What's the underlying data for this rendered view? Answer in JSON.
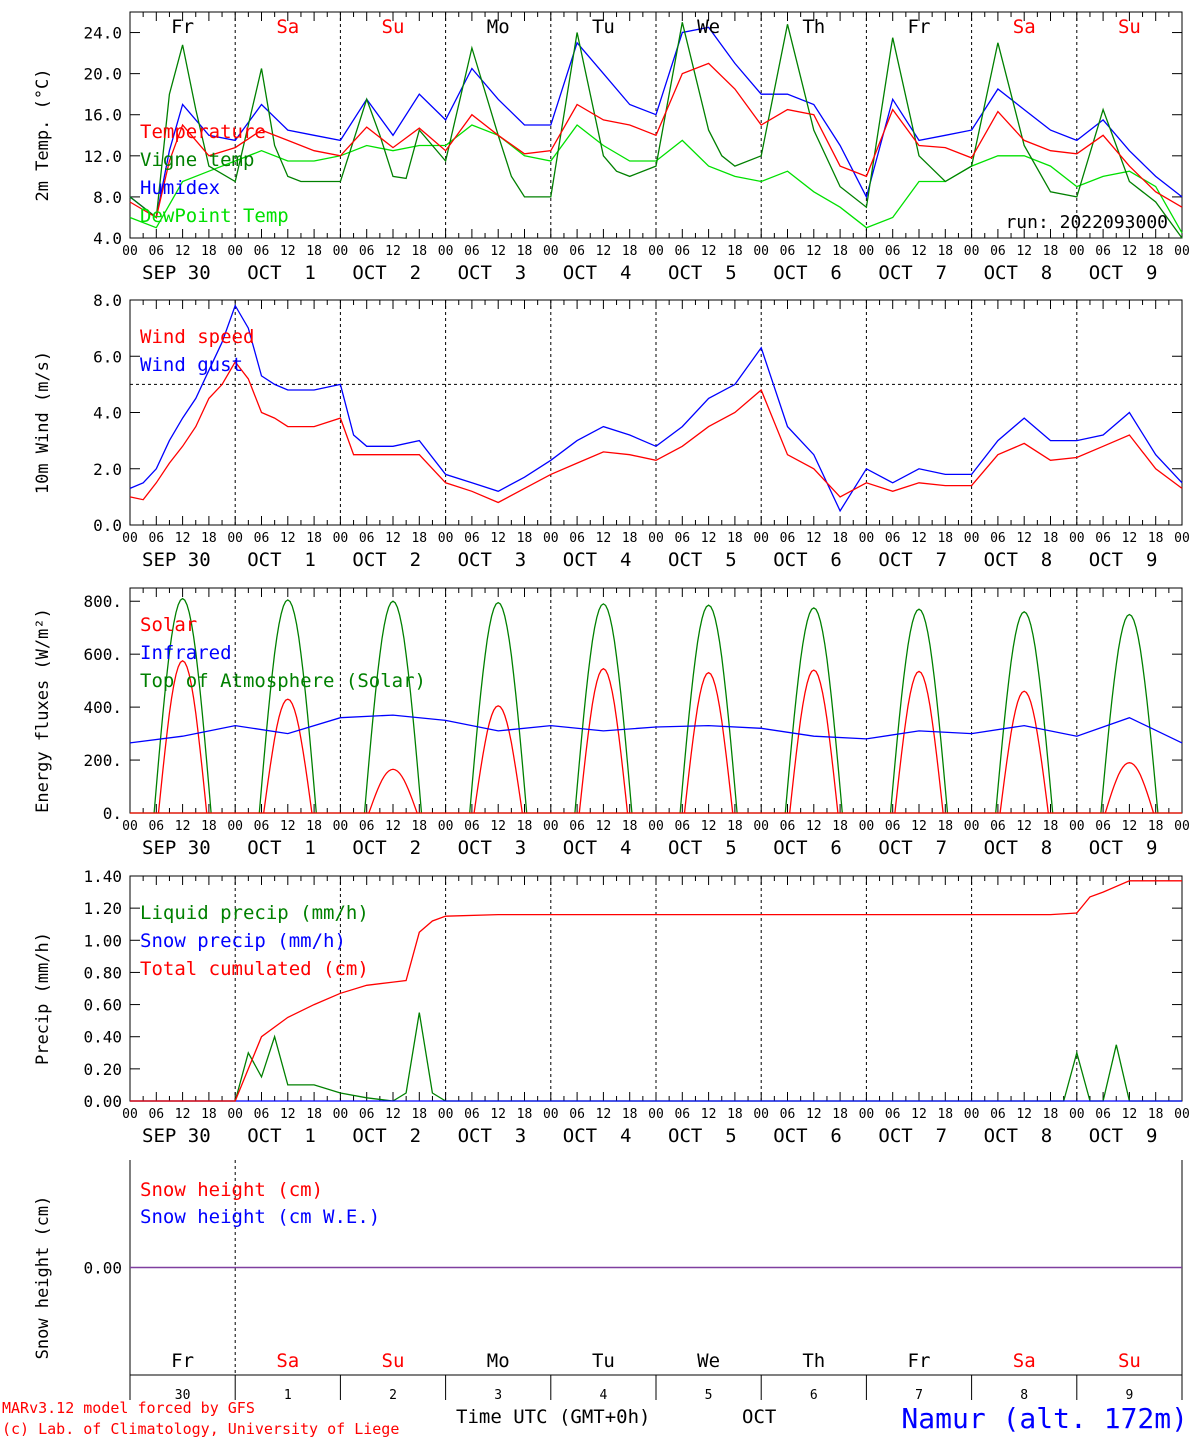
{
  "run_label": "run: 2022093000",
  "footer": {
    "model": "MARv3.12 model forced by GFS",
    "credit": "(c) Lab. of Climatology, University of Liege",
    "xlabel": "Time UTC (GMT+0h)",
    "month": "OCT",
    "station": "Namur (alt. 172m)"
  },
  "colors": {
    "red": "#ff0000",
    "blue": "#0000ff",
    "green": "#008000",
    "lightgreen": "#00e000",
    "purple": "#7f3f9f"
  },
  "days": {
    "weekdays": [
      "Fr",
      "Sa",
      "Su",
      "Mo",
      "Tu",
      "We",
      "Th",
      "Fr",
      "Sa",
      "Su"
    ],
    "weekday_colors": [
      "#000000",
      "#ff0000",
      "#ff0000",
      "#000000",
      "#000000",
      "#000000",
      "#000000",
      "#000000",
      "#ff0000",
      "#ff0000"
    ],
    "date_labels": [
      "SEP 30",
      "OCT  1",
      "OCT  2",
      "OCT  3",
      "OCT  4",
      "OCT  5",
      "OCT  6",
      "OCT  7",
      "OCT  8",
      "OCT  9"
    ],
    "day_numbers": [
      "30",
      "1",
      "2",
      "3",
      "4",
      "5",
      "6",
      "7",
      "8",
      "9"
    ],
    "hour_ticks": [
      "00",
      "06",
      "12",
      "18"
    ],
    "end_tick": "00"
  },
  "chart_data": [
    {
      "type": "line",
      "ylabel": "2m Temp. (°C)",
      "ylim": [
        4.0,
        26.0
      ],
      "yticks": [
        "4.0",
        "8.0",
        "12.0",
        "16.0",
        "20.0",
        "24.0"
      ],
      "x_unit": "hours since 2022-09-30 00 UTC",
      "series": [
        {
          "name": "Temperature",
          "color": "#ff0000",
          "x": [
            0,
            6,
            9,
            12,
            15,
            18,
            24,
            30,
            36,
            42,
            48,
            54,
            60,
            66,
            72,
            78,
            84,
            90,
            96,
            102,
            108,
            114,
            120,
            126,
            132,
            138,
            144,
            150,
            156,
            162,
            168,
            174,
            180,
            186,
            192,
            198,
            204,
            210,
            216,
            222,
            228,
            234,
            240
          ],
          "y": [
            7.5,
            6.0,
            11.5,
            15.0,
            13.5,
            12.0,
            12.8,
            14.5,
            13.5,
            12.5,
            12.0,
            14.8,
            12.8,
            14.7,
            12.5,
            16.0,
            14.0,
            12.2,
            12.5,
            17.0,
            15.5,
            15.0,
            14.0,
            20.0,
            21.0,
            18.5,
            15.0,
            16.5,
            16.0,
            11.0,
            10.0,
            16.5,
            13.0,
            12.8,
            11.8,
            16.3,
            13.5,
            12.5,
            12.2,
            14.0,
            11.0,
            8.5,
            7.0
          ]
        },
        {
          "name": "Vigne temp",
          "color": "#008000",
          "x": [
            0,
            6,
            9,
            12,
            15,
            18,
            24,
            30,
            33,
            36,
            39,
            42,
            48,
            54,
            57,
            60,
            63,
            66,
            72,
            78,
            84,
            87,
            90,
            96,
            102,
            108,
            111,
            114,
            120,
            126,
            132,
            135,
            138,
            144,
            150,
            156,
            162,
            168,
            174,
            180,
            186,
            192,
            198,
            204,
            210,
            216,
            222,
            228,
            234,
            240
          ],
          "y": [
            8.0,
            6.0,
            18.0,
            22.8,
            16.5,
            11.0,
            9.5,
            20.5,
            13.0,
            10.0,
            9.5,
            9.5,
            9.5,
            17.5,
            14.0,
            10.0,
            9.8,
            14.5,
            11.5,
            22.5,
            14.0,
            10.0,
            8.0,
            8.0,
            24.0,
            12.0,
            10.5,
            10.0,
            11.0,
            25.0,
            14.5,
            12.0,
            11.0,
            12.0,
            24.8,
            14.5,
            9.0,
            7.0,
            23.5,
            12.0,
            9.5,
            11.0,
            23.0,
            13.0,
            8.5,
            8.0,
            16.5,
            9.5,
            7.5,
            4.0
          ]
        },
        {
          "name": "Humidex",
          "color": "#0000ff",
          "x": [
            0,
            6,
            9,
            12,
            15,
            18,
            24,
            30,
            36,
            42,
            48,
            54,
            60,
            66,
            72,
            78,
            84,
            90,
            96,
            102,
            108,
            114,
            120,
            126,
            132,
            138,
            144,
            150,
            156,
            162,
            168,
            174,
            180,
            186,
            192,
            198,
            204,
            210,
            216,
            222,
            228,
            234,
            240
          ],
          "y": [
            8.0,
            6.0,
            12.5,
            17.0,
            15.5,
            14.0,
            13.5,
            17.0,
            14.5,
            14.0,
            13.5,
            17.5,
            14.0,
            18.0,
            15.5,
            20.5,
            17.5,
            15.0,
            15.0,
            23.0,
            20.0,
            17.0,
            16.0,
            24.0,
            24.5,
            21.0,
            18.0,
            18.0,
            17.0,
            13.0,
            8.0,
            17.5,
            13.5,
            14.0,
            14.5,
            18.5,
            16.5,
            14.5,
            13.5,
            15.5,
            12.5,
            10.0,
            8.0
          ]
        },
        {
          "name": "DewPoint Temp",
          "color": "#00e000",
          "x": [
            0,
            6,
            12,
            18,
            24,
            30,
            36,
            42,
            48,
            54,
            60,
            66,
            72,
            78,
            84,
            90,
            96,
            102,
            108,
            114,
            120,
            126,
            132,
            138,
            144,
            150,
            156,
            162,
            168,
            174,
            180,
            186,
            192,
            198,
            204,
            210,
            216,
            222,
            228,
            234,
            240
          ],
          "y": [
            6.0,
            5.0,
            9.5,
            10.5,
            11.5,
            12.5,
            11.5,
            11.5,
            12.0,
            13.0,
            12.5,
            13.0,
            13.0,
            15.0,
            14.0,
            12.0,
            11.5,
            15.0,
            13.0,
            11.5,
            11.5,
            13.5,
            11.0,
            10.0,
            9.5,
            10.5,
            8.5,
            7.0,
            5.0,
            6.0,
            9.5,
            9.5,
            11.0,
            12.0,
            12.0,
            11.0,
            9.0,
            10.0,
            10.5,
            9.0,
            4.5
          ]
        }
      ]
    },
    {
      "type": "line",
      "ylabel": "10m Wind (m/s)",
      "ylim": [
        0.0,
        8.0
      ],
      "yticks": [
        "0.0",
        "2.0",
        "4.0",
        "6.0",
        "8.0"
      ],
      "reference_line": 5.0,
      "series": [
        {
          "name": "Wind speed",
          "color": "#ff0000",
          "x": [
            0,
            3,
            6,
            9,
            12,
            15,
            18,
            21,
            24,
            27,
            30,
            33,
            36,
            42,
            48,
            51,
            54,
            60,
            66,
            72,
            78,
            84,
            90,
            96,
            102,
            108,
            114,
            120,
            126,
            132,
            138,
            144,
            150,
            156,
            162,
            168,
            174,
            180,
            186,
            192,
            198,
            204,
            210,
            216,
            222,
            228,
            234,
            240
          ],
          "y": [
            1.0,
            0.9,
            1.5,
            2.2,
            2.8,
            3.5,
            4.5,
            5.0,
            5.8,
            5.2,
            4.0,
            3.8,
            3.5,
            3.5,
            3.8,
            2.5,
            2.5,
            2.5,
            2.5,
            1.5,
            1.2,
            0.8,
            1.3,
            1.8,
            2.2,
            2.6,
            2.5,
            2.3,
            2.8,
            3.5,
            4.0,
            4.8,
            2.5,
            2.0,
            1.0,
            1.5,
            1.2,
            1.5,
            1.4,
            1.4,
            2.5,
            2.9,
            2.3,
            2.4,
            2.8,
            3.2,
            2.0,
            1.3
          ]
        },
        {
          "name": "Wind gust",
          "color": "#0000ff",
          "x": [
            0,
            3,
            6,
            9,
            12,
            15,
            18,
            21,
            24,
            27,
            30,
            33,
            36,
            42,
            48,
            51,
            54,
            60,
            66,
            72,
            78,
            84,
            90,
            96,
            102,
            108,
            114,
            120,
            126,
            132,
            138,
            144,
            150,
            156,
            162,
            168,
            174,
            180,
            186,
            192,
            198,
            204,
            210,
            216,
            222,
            228,
            234,
            240
          ],
          "y": [
            1.3,
            1.5,
            2.0,
            3.0,
            3.8,
            4.5,
            5.5,
            6.5,
            7.8,
            7.0,
            5.3,
            5.0,
            4.8,
            4.8,
            5.0,
            3.2,
            2.8,
            2.8,
            3.0,
            1.8,
            1.5,
            1.2,
            1.7,
            2.3,
            3.0,
            3.5,
            3.2,
            2.8,
            3.5,
            4.5,
            5.0,
            6.3,
            3.5,
            2.5,
            0.5,
            2.0,
            1.5,
            2.0,
            1.8,
            1.8,
            3.0,
            3.8,
            3.0,
            3.0,
            3.2,
            4.0,
            2.5,
            1.5
          ]
        }
      ]
    },
    {
      "type": "line",
      "ylabel": "Energy fluxes (W/m²)",
      "ylim": [
        0,
        850
      ],
      "yticks": [
        "0.",
        "200.",
        "400.",
        "600.",
        "800."
      ],
      "series": [
        {
          "name": "Solar",
          "color": "#ff0000",
          "day_peaks": [
            575,
            430,
            165,
            405,
            545,
            530,
            540,
            535,
            460,
            190
          ]
        },
        {
          "name": "Infrared",
          "color": "#0000ff",
          "x": [
            0,
            12,
            24,
            36,
            48,
            60,
            72,
            84,
            96,
            108,
            120,
            132,
            144,
            156,
            168,
            180,
            192,
            204,
            216,
            228,
            240
          ],
          "y": [
            265,
            290,
            330,
            300,
            360,
            370,
            350,
            310,
            330,
            310,
            325,
            330,
            320,
            290,
            280,
            310,
            300,
            330,
            290,
            360,
            265
          ]
        },
        {
          "name": "Top of Atmosphere (Solar)",
          "color": "#008000",
          "day_peaks": [
            810,
            805,
            800,
            795,
            790,
            785,
            775,
            770,
            760,
            750
          ]
        }
      ]
    },
    {
      "type": "line",
      "ylabel": "Precip (mm/h)",
      "ylim": [
        0.0,
        1.4
      ],
      "yticks": [
        "0.00",
        "0.20",
        "0.40",
        "0.60",
        "0.80",
        "1.00",
        "1.20",
        "1.40"
      ],
      "series": [
        {
          "name": "Liquid precip (mm/h)",
          "color": "#008000",
          "x": [
            0,
            24,
            27,
            30,
            33,
            36,
            42,
            48,
            54,
            60,
            63,
            66,
            69,
            72,
            78,
            84,
            210,
            213,
            216,
            219,
            222,
            225,
            228,
            240
          ],
          "y": [
            0,
            0,
            0.3,
            0.15,
            0.4,
            0.1,
            0.1,
            0.05,
            0.02,
            0,
            0.05,
            0.55,
            0.05,
            0,
            0,
            0,
            0,
            0,
            0.3,
            0,
            0,
            0.35,
            0,
            0
          ]
        },
        {
          "name": "Snow precip (mm/h)",
          "color": "#0000ff",
          "x": [
            0,
            240
          ],
          "y": [
            0,
            0
          ]
        },
        {
          "name": "Total cumulated (cm)",
          "color": "#ff0000",
          "x": [
            0,
            24,
            27,
            30,
            36,
            42,
            48,
            54,
            60,
            63,
            66,
            69,
            72,
            84,
            120,
            180,
            210,
            216,
            219,
            222,
            228,
            240
          ],
          "y": [
            0,
            0,
            0.2,
            0.4,
            0.52,
            0.6,
            0.67,
            0.72,
            0.74,
            0.75,
            1.05,
            1.12,
            1.15,
            1.16,
            1.16,
            1.16,
            1.16,
            1.17,
            1.27,
            1.3,
            1.37,
            1.37
          ]
        }
      ]
    },
    {
      "type": "line",
      "ylabel": "Snow height (cm)",
      "ylim": [
        -1,
        1
      ],
      "yticks": [
        "0.00"
      ],
      "series": [
        {
          "name": "Snow height (cm)",
          "color": "#ff0000",
          "x": [
            0,
            240
          ],
          "y": [
            0,
            0
          ]
        },
        {
          "name": "Snow height (cm W.E.)",
          "color": "#0000ff",
          "x": [
            0,
            240
          ],
          "y": [
            0,
            0
          ]
        }
      ]
    }
  ]
}
